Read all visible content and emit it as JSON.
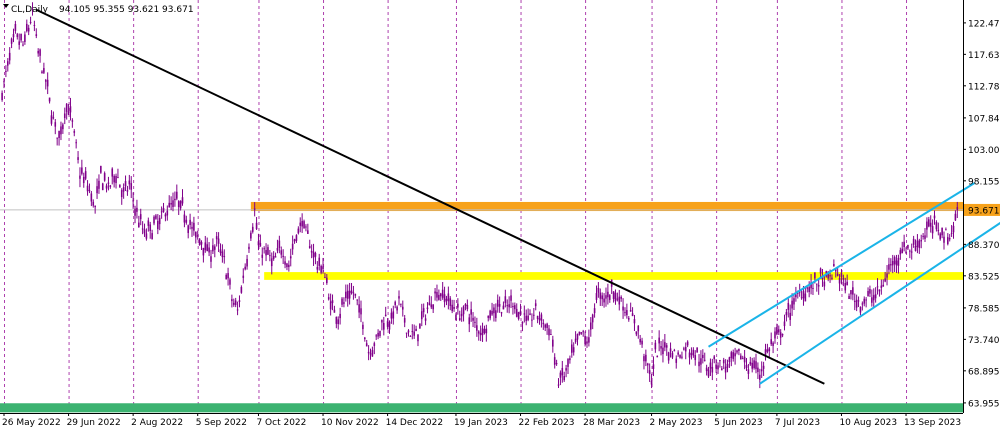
{
  "header": {
    "symbol_label": "CL,Daily",
    "ohlc_label": "94.105 95.355 93.621 93.671"
  },
  "chart_data": {
    "type": "candlestick",
    "symbol": "CL",
    "timeframe": "Daily",
    "last_price": 93.671,
    "last_price_label": "93.671",
    "ylim": [
      62.4,
      126.0
    ],
    "y_ticks": [
      "122.475",
      "117.630",
      "112.785",
      "107.845",
      "103.000",
      "98.155",
      "93.671",
      "88.370",
      "83.525",
      "78.585",
      "73.740",
      "68.895",
      "63.955"
    ],
    "x_ticks": [
      "26 May 2022",
      "29 Jun 2022",
      "2 Aug 2022",
      "5 Sep 2022",
      "7 Oct 2022",
      "10 Nov 2022",
      "14 Dec 2022",
      "19 Jan 2023",
      "22 Feb 2023",
      "28 Mar 2023",
      "2 May 2023",
      "5 Jun 2023",
      "7 Jul 2023",
      "10 Aug 2023",
      "13 Sep 2023"
    ],
    "x_tick_days": [
      0,
      34,
      68,
      102,
      134,
      168,
      202,
      238,
      272,
      306,
      341,
      375,
      407,
      441,
      475
    ],
    "grid": true,
    "zones": [
      {
        "name": "resistance",
        "low": 93.5,
        "high": 94.9,
        "start_day": 130,
        "end_day": 530,
        "color": "#f7a21b"
      },
      {
        "name": "support",
        "low": 82.9,
        "high": 84.1,
        "start_day": 137,
        "end_day": 530,
        "color": "#ffff00"
      },
      {
        "name": "base",
        "low": 62.5,
        "high": 63.9,
        "start_day": -20,
        "end_day": 530,
        "color": "#3cb371"
      }
    ],
    "trendlines": [
      {
        "name": "downtrend",
        "start": [
          17,
          124.5
        ],
        "end": [
          432,
          66.9
        ],
        "color": "#000000"
      },
      {
        "name": "channel-upper",
        "start": [
          371,
          72.6
        ],
        "end": [
          511,
          97.8
        ],
        "color": "#1ab4e8"
      },
      {
        "name": "channel-lower",
        "start": [
          398,
          66.9
        ],
        "end": [
          534,
          93.5
        ],
        "color": "#1ab4e8"
      }
    ],
    "price_path": [
      [
        -1,
        111.5
      ],
      [
        3,
        117.5
      ],
      [
        6,
        120.5
      ],
      [
        10,
        119.0
      ],
      [
        15,
        123.8
      ],
      [
        18,
        118.0
      ],
      [
        22,
        113.5
      ],
      [
        26,
        107.5
      ],
      [
        29,
        104.5
      ],
      [
        33,
        110.0
      ],
      [
        36,
        107.0
      ],
      [
        40,
        99.5
      ],
      [
        44,
        97.5
      ],
      [
        48,
        94.0
      ],
      [
        51,
        99.0
      ],
      [
        55,
        97.0
      ],
      [
        59,
        99.5
      ],
      [
        63,
        96.0
      ],
      [
        66,
        97.5
      ],
      [
        70,
        93.0
      ],
      [
        74,
        90.0
      ],
      [
        78,
        91.0
      ],
      [
        82,
        92.0
      ],
      [
        86,
        94.0
      ],
      [
        91,
        95.0
      ],
      [
        95,
        93.5
      ],
      [
        100,
        90.0
      ],
      [
        104,
        89.0
      ],
      [
        108,
        87.0
      ],
      [
        112,
        88.5
      ],
      [
        116,
        86.0
      ],
      [
        120,
        80.0
      ],
      [
        123,
        78.0
      ],
      [
        126,
        83.5
      ],
      [
        130,
        90.0
      ],
      [
        132,
        93.5
      ],
      [
        134,
        88.0
      ],
      [
        138,
        87.0
      ],
      [
        142,
        85.5
      ],
      [
        146,
        88.0
      ],
      [
        150,
        85.0
      ],
      [
        153,
        89.0
      ],
      [
        157,
        92.0
      ],
      [
        161,
        88.5
      ],
      [
        165,
        85.5
      ],
      [
        169,
        84.0
      ],
      [
        172,
        79.0
      ],
      [
        176,
        77.5
      ],
      [
        180,
        80.0
      ],
      [
        184,
        81.0
      ],
      [
        188,
        77.5
      ],
      [
        192,
        72.0
      ],
      [
        196,
        73.5
      ],
      [
        200,
        77.0
      ],
      [
        204,
        77.0
      ],
      [
        208,
        79.5
      ],
      [
        212,
        75.5
      ],
      [
        216,
        74.0
      ],
      [
        220,
        76.5
      ],
      [
        224,
        79.0
      ],
      [
        228,
        81.0
      ],
      [
        232,
        80.5
      ],
      [
        236,
        79.0
      ],
      [
        240,
        77.5
      ],
      [
        244,
        78.5
      ],
      [
        248,
        76.0
      ],
      [
        252,
        75.0
      ],
      [
        256,
        77.5
      ],
      [
        260,
        79.0
      ],
      [
        264,
        78.5
      ],
      [
        268,
        79.5
      ],
      [
        272,
        77.5
      ],
      [
        276,
        76.5
      ],
      [
        280,
        78.0
      ],
      [
        284,
        76.5
      ],
      [
        288,
        74.5
      ],
      [
        292,
        67.5
      ],
      [
        296,
        68.5
      ],
      [
        300,
        72.0
      ],
      [
        304,
        74.5
      ],
      [
        308,
        73.5
      ],
      [
        312,
        80.5
      ],
      [
        316,
        80.0
      ],
      [
        320,
        81.5
      ],
      [
        324,
        80.0
      ],
      [
        328,
        78.0
      ],
      [
        332,
        76.5
      ],
      [
        336,
        73.0
      ],
      [
        338,
        70.5
      ],
      [
        341,
        67.5
      ],
      [
        343,
        71.5
      ],
      [
        347,
        73.0
      ],
      [
        351,
        72.0
      ],
      [
        355,
        71.0
      ],
      [
        359,
        72.5
      ],
      [
        363,
        72.0
      ],
      [
        367,
        70.5
      ],
      [
        371,
        69.5
      ],
      [
        375,
        70.5
      ],
      [
        379,
        69.5
      ],
      [
        383,
        70.0
      ],
      [
        387,
        71.5
      ],
      [
        391,
        70.0
      ],
      [
        395,
        69.5
      ],
      [
        398,
        68.5
      ],
      [
        402,
        72.0
      ],
      [
        406,
        73.5
      ],
      [
        410,
        75.0
      ],
      [
        414,
        78.5
      ],
      [
        418,
        80.5
      ],
      [
        422,
        81.5
      ],
      [
        426,
        82.0
      ],
      [
        430,
        83.0
      ],
      [
        434,
        82.5
      ],
      [
        437,
        84.5
      ],
      [
        440,
        83.5
      ],
      [
        444,
        81.5
      ],
      [
        448,
        80.0
      ],
      [
        452,
        79.5
      ],
      [
        455,
        80.0
      ],
      [
        458,
        80.5
      ],
      [
        462,
        81.5
      ],
      [
        466,
        84.5
      ],
      [
        470,
        86.5
      ],
      [
        474,
        88.0
      ],
      [
        478,
        87.5
      ],
      [
        482,
        89.0
      ],
      [
        486,
        90.5
      ],
      [
        490,
        91.5
      ],
      [
        494,
        90.5
      ],
      [
        497,
        89.5
      ],
      [
        500,
        91.0
      ],
      [
        502,
        93.67
      ]
    ]
  }
}
